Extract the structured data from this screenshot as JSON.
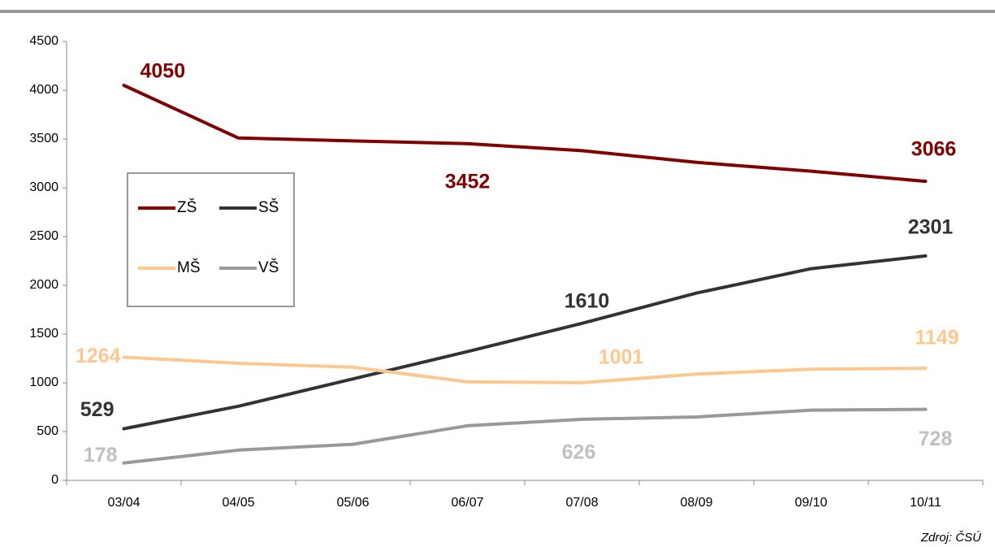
{
  "chart_data": {
    "type": "line",
    "categories": [
      "03/04",
      "04/05",
      "05/06",
      "06/07",
      "07/08",
      "08/09",
      "09/10",
      "10/11"
    ],
    "series": [
      {
        "name": "ZŠ",
        "color": "#800000",
        "values": [
          4050,
          3510,
          3480,
          3452,
          3380,
          3260,
          3170,
          3066
        ],
        "value_labels": [
          "4050",
          null,
          null,
          "3452",
          null,
          null,
          null,
          "3066"
        ]
      },
      {
        "name": "SŠ",
        "color": "#333333",
        "values": [
          529,
          760,
          1040,
          1320,
          1610,
          1920,
          2170,
          2301
        ],
        "value_labels": [
          "529",
          null,
          null,
          null,
          "1610",
          null,
          null,
          "2301"
        ]
      },
      {
        "name": "MŠ",
        "color": "#fcc890",
        "values": [
          1264,
          1200,
          1160,
          1010,
          1001,
          1090,
          1140,
          1149
        ],
        "value_labels": [
          "1264",
          null,
          null,
          null,
          "1001",
          null,
          null,
          "1149"
        ]
      },
      {
        "name": "VŠ",
        "color": "#999999",
        "values": [
          178,
          310,
          370,
          560,
          626,
          650,
          720,
          728
        ],
        "value_labels": [
          "178",
          null,
          null,
          null,
          "626",
          null,
          null,
          "728"
        ]
      }
    ],
    "ylim": [
      0,
      4500
    ],
    "yticks": [
      0,
      500,
      1000,
      1500,
      2000,
      2500,
      3000,
      3500,
      4000,
      4500
    ],
    "grid": false,
    "legend": "left",
    "source": "Zdroj: ČSÚ"
  }
}
